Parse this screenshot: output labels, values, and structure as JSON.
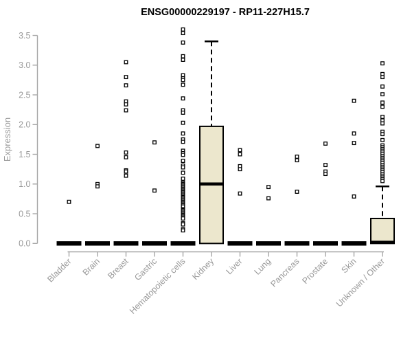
{
  "colors": {
    "box_fill": "#ece7cd",
    "stroke": "#000000",
    "axis_line": "#a6a6a6",
    "tick_label": "#999999",
    "axis_label": "#999999",
    "title": "#000000",
    "background": "#ffffff"
  },
  "chart_data": {
    "type": "boxplot",
    "title": "ENSG00000229197 - RP11-227H15.7",
    "ylabel": "Expression",
    "yticks": [
      0.0,
      0.5,
      1.0,
      1.5,
      2.0,
      2.5,
      3.0,
      3.5
    ],
    "ylim": [
      -0.1,
      3.7
    ],
    "grid": false,
    "categories": [
      "Bladder",
      "Brain",
      "Breast",
      "Gastric",
      "Hematopoietic cells",
      "Kidney",
      "Liver",
      "Lung",
      "Pancreas",
      "Prostate",
      "Skin",
      "Unknown / Other"
    ],
    "boxes": [
      {
        "category": "Bladder",
        "collapsed": true,
        "q1": 0,
        "median": 0,
        "q3": 0,
        "whisker_low": 0,
        "whisker_high": 0,
        "outliers": [
          0.7
        ]
      },
      {
        "category": "Brain",
        "collapsed": true,
        "q1": 0,
        "median": 0,
        "q3": 0,
        "whisker_low": 0,
        "whisker_high": 0,
        "outliers": [
          1.64,
          1.0,
          0.96
        ]
      },
      {
        "category": "Breast",
        "collapsed": true,
        "q1": 0,
        "median": 0,
        "q3": 0,
        "whisker_low": 0,
        "whisker_high": 0,
        "outliers": [
          3.05,
          2.8,
          2.66,
          2.39,
          2.34,
          2.24,
          1.53,
          1.45,
          1.23,
          1.21,
          1.14
        ]
      },
      {
        "category": "Gastric",
        "collapsed": true,
        "q1": 0,
        "median": 0,
        "q3": 0,
        "whisker_low": 0,
        "whisker_high": 0,
        "outliers": [
          1.7,
          0.89
        ]
      },
      {
        "category": "Hematopoietic cells",
        "collapsed": true,
        "q1": 0,
        "median": 0,
        "q3": 0,
        "whisker_low": 0,
        "whisker_high": 0,
        "outliers": [
          3.6,
          3.54,
          3.38,
          3.15,
          3.09,
          2.83,
          2.78,
          2.75,
          2.67,
          2.44,
          2.24,
          2.2,
          2.03,
          1.85,
          1.75,
          1.71,
          1.56,
          1.52,
          1.49,
          1.39,
          1.31,
          1.28,
          1.19,
          1.09,
          1.02,
          1.0,
          0.98,
          0.96,
          0.94,
          0.92,
          0.9,
          0.88,
          0.86,
          0.84,
          0.82,
          0.8,
          0.78,
          0.76,
          0.74,
          0.72,
          0.7,
          0.68,
          0.66,
          0.64,
          0.62,
          0.58,
          0.56,
          0.54,
          0.52,
          0.5,
          0.48,
          0.46,
          0.44,
          0.42,
          0.34,
          0.32,
          0.24,
          0.22
        ]
      },
      {
        "category": "Kidney",
        "collapsed": false,
        "q1": 0,
        "median": 1.0,
        "q3": 1.97,
        "whisker_low": 0,
        "whisker_high": 3.4,
        "outliers": []
      },
      {
        "category": "Liver",
        "collapsed": true,
        "q1": 0,
        "median": 0,
        "q3": 0,
        "whisker_low": 0,
        "whisker_high": 0,
        "outliers": [
          1.57,
          1.5,
          1.3,
          1.25,
          0.84
        ]
      },
      {
        "category": "Lung",
        "collapsed": true,
        "q1": 0,
        "median": 0,
        "q3": 0,
        "whisker_low": 0,
        "whisker_high": 0,
        "outliers": [
          0.95,
          0.76
        ]
      },
      {
        "category": "Pancreas",
        "collapsed": true,
        "q1": 0,
        "median": 0,
        "q3": 0,
        "whisker_low": 0,
        "whisker_high": 0,
        "outliers": [
          1.46,
          1.4,
          0.87
        ]
      },
      {
        "category": "Prostate",
        "collapsed": true,
        "q1": 0,
        "median": 0,
        "q3": 0,
        "whisker_low": 0,
        "whisker_high": 0,
        "outliers": [
          1.68,
          1.32,
          1.21,
          1.17
        ]
      },
      {
        "category": "Skin",
        "collapsed": true,
        "q1": 0,
        "median": 0,
        "q3": 0,
        "whisker_low": 0,
        "whisker_high": 0,
        "outliers": [
          2.4,
          1.85,
          1.69,
          0.79
        ]
      },
      {
        "category": "Unknown / Other",
        "collapsed": false,
        "q1": 0,
        "median": 0.02,
        "q3": 0.42,
        "whisker_low": 0,
        "whisker_high": 0.96,
        "outliers": [
          3.03,
          2.85,
          2.8,
          2.64,
          2.51,
          2.37,
          2.3,
          2.13,
          2.07,
          2.02,
          1.88,
          1.84,
          1.74,
          1.65,
          1.62,
          1.59,
          1.56,
          1.53,
          1.5,
          1.47,
          1.44,
          1.41,
          1.38,
          1.35,
          1.32,
          1.29,
          1.26,
          1.23,
          1.2,
          1.17,
          1.14,
          1.11,
          1.08,
          1.05
        ]
      }
    ],
    "legend": null
  }
}
